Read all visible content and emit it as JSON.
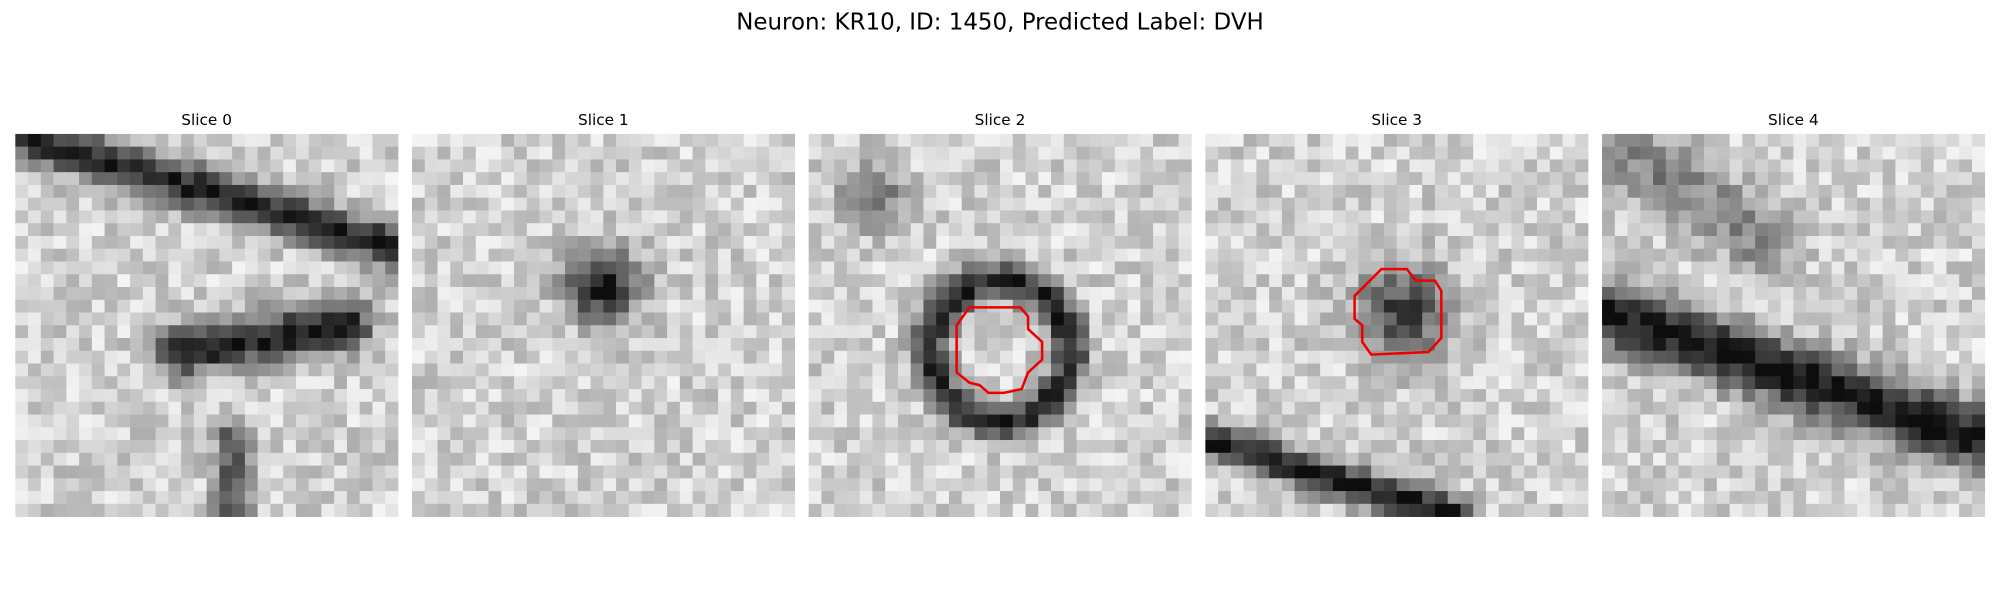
{
  "title": "Neuron: KR10, ID: 1450, Predicted Label: DVH",
  "panels": [
    {
      "title": "Slice 0"
    },
    {
      "title": "Slice 1"
    },
    {
      "title": "Slice 2"
    },
    {
      "title": "Slice 3"
    },
    {
      "title": "Slice 4"
    }
  ]
}
